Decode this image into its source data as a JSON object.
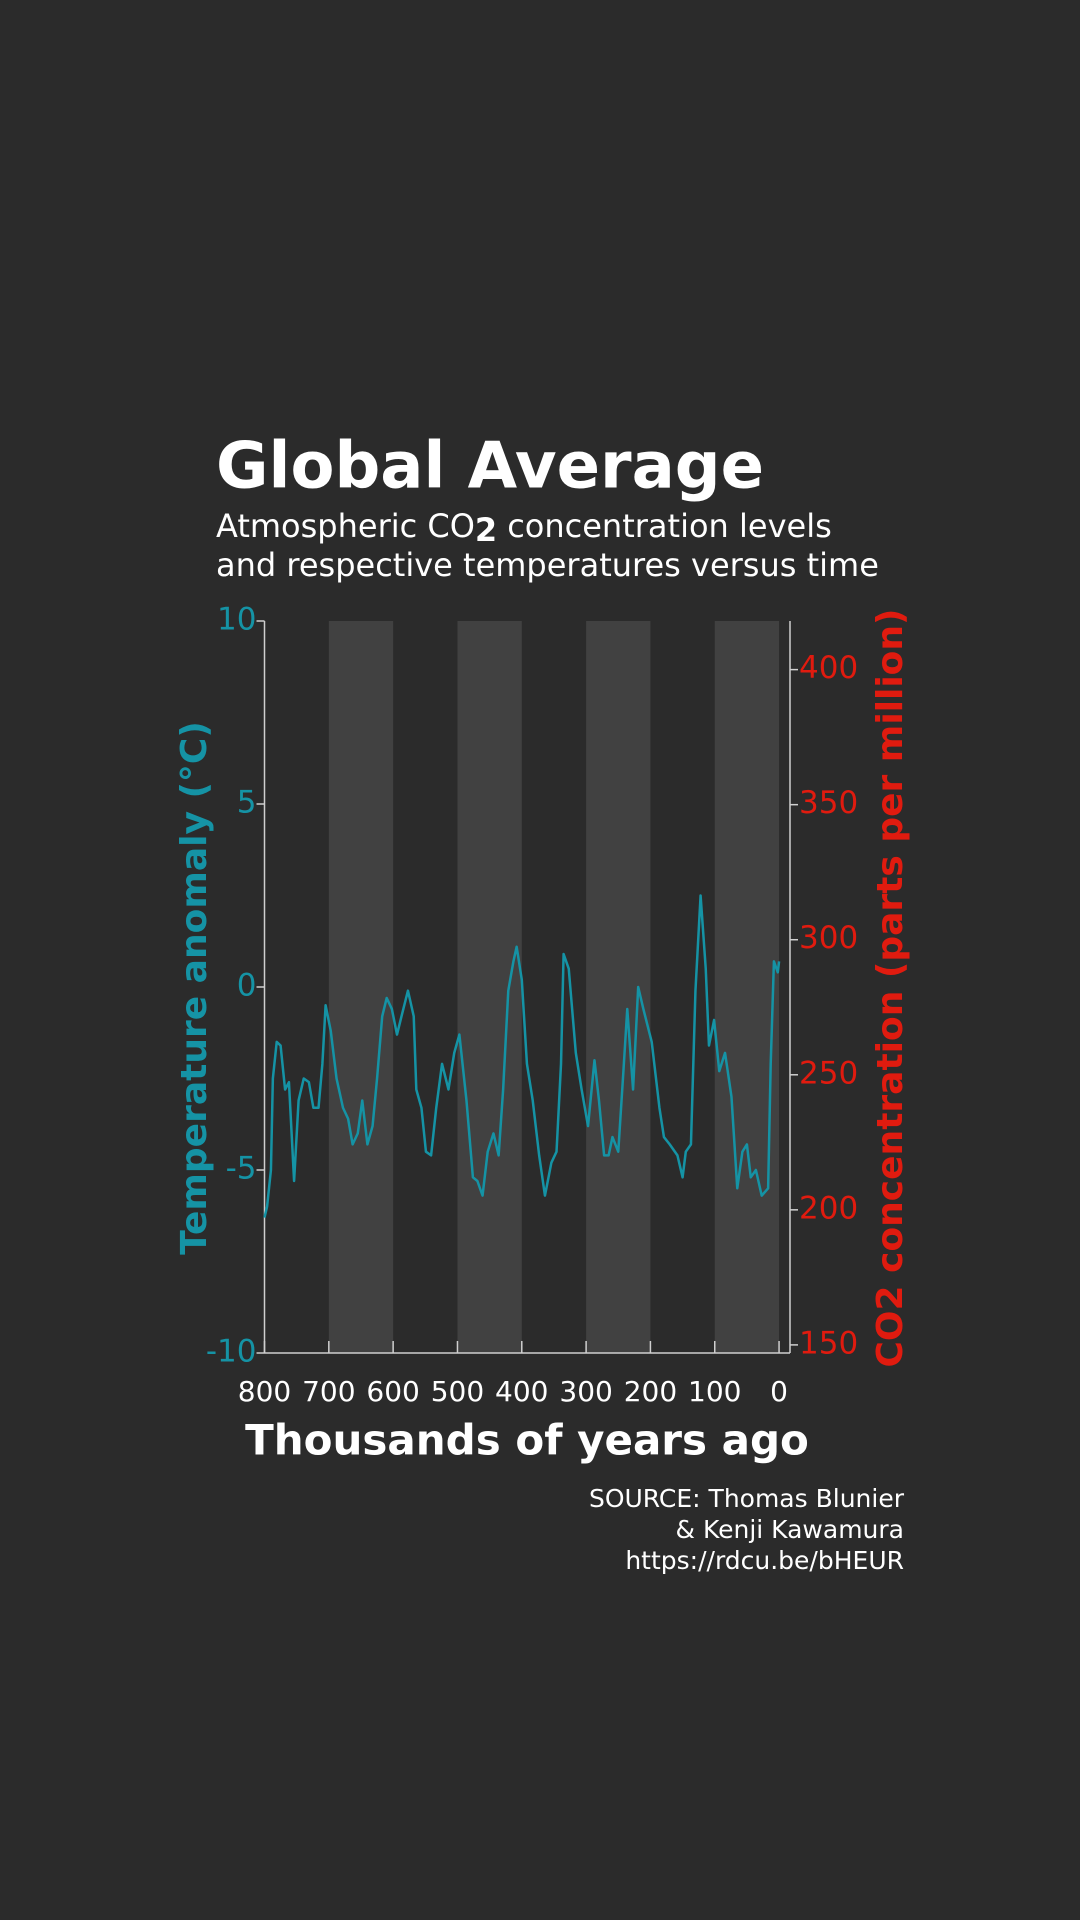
{
  "chart_data": {
    "type": "line",
    "title": "Global Average",
    "subtitle": [
      "Atmospheric CO",
      "2",
      "concentration levels",
      "and respective temperatures versus time"
    ],
    "xlabel": "Thousands of years ago",
    "ylabel": "Temperature anomaly (°C)",
    "y2label": "CO2 concentration (parts per million)",
    "source": [
      "SOURCE: Thomas Blunier",
      "& Kenji Kawamura",
      "https://rdcu.be/bHEUR"
    ],
    "xlim": [
      800,
      -17
    ],
    "xticks": [
      800,
      700,
      600,
      500,
      400,
      300,
      200,
      100,
      0
    ],
    "ylim": [
      -10,
      10
    ],
    "yticks": [
      10,
      5,
      0,
      -5,
      -10
    ],
    "y2lim": [
      147,
      418
    ],
    "y2ticks": [
      400,
      350,
      300,
      250,
      200,
      150
    ],
    "shaded_ranges": [
      [
        700,
        600
      ],
      [
        500,
        400
      ],
      [
        300,
        200
      ],
      [
        100,
        0
      ]
    ],
    "shade_color": "#414141",
    "ycolor": "#1593a5",
    "y2color": "#e01b0f",
    "x": [
      800,
      796,
      790,
      787,
      781,
      775,
      768,
      762,
      754,
      747,
      739,
      731,
      724,
      716,
      710,
      705,
      697,
      688,
      678,
      670,
      663,
      655,
      648,
      640,
      632,
      625,
      617,
      610,
      602,
      594,
      587,
      577,
      568,
      564,
      556,
      549,
      541,
      533,
      524,
      514,
      505,
      497,
      486,
      476,
      469,
      461,
      453,
      444,
      436,
      429,
      421,
      413,
      408,
      400,
      392,
      383,
      373,
      364,
      354,
      346,
      339,
      335,
      327,
      316,
      307,
      297,
      287,
      280,
      272,
      265,
      259,
      250,
      242,
      236,
      227,
      219,
      211,
      198,
      186,
      179,
      170,
      158,
      150,
      145,
      137,
      130,
      122,
      114,
      109,
      101,
      93,
      84,
      74,
      65,
      57,
      50,
      44,
      36,
      27,
      17,
      13,
      8,
      2,
      0
    ],
    "series": [
      {
        "name": "Temperature anomaly",
        "color": "#1593a5",
        "values": [
          -6.3,
          -6.0,
          -5.0,
          -2.5,
          -1.5,
          -1.6,
          -2.8,
          -2.6,
          -5.3,
          -3.1,
          -2.5,
          -2.6,
          -3.3,
          -3.3,
          -2.1,
          -0.5,
          -1.2,
          -2.5,
          -3.3,
          -3.6,
          -4.3,
          -4.0,
          -3.1,
          -4.3,
          -3.8,
          -2.5,
          -0.8,
          -0.3,
          -0.6,
          -1.3,
          -0.8,
          -0.1,
          -0.8,
          -2.8,
          -3.3,
          -4.5,
          -4.6,
          -3.3,
          -2.1,
          -2.8,
          -1.8,
          -1.3,
          -3.1,
          -5.2,
          -5.3,
          -5.7,
          -4.5,
          -4.0,
          -4.6,
          -2.8,
          -0.1,
          0.7,
          1.1,
          0.2,
          -2.1,
          -3.1,
          -4.6,
          -5.7,
          -4.8,
          -4.5,
          -2.1,
          0.9,
          0.5,
          -1.8,
          -2.8,
          -3.8,
          -2.0,
          -3.1,
          -4.6,
          -4.6,
          -4.1,
          -4.5,
          -2.3,
          -0.6,
          -2.8,
          0.0,
          -0.6,
          -1.5,
          -3.3,
          -4.1,
          -4.3,
          -4.6,
          -5.2,
          -4.5,
          -4.3,
          -0.1,
          2.5,
          0.5,
          -1.6,
          -0.9,
          -2.3,
          -1.8,
          -3.0,
          -5.5,
          -4.5,
          -4.3,
          -5.2,
          -5.0,
          -5.7,
          -5.5,
          -2.1,
          0.7,
          0.4,
          0.7
        ]
      }
    ]
  }
}
